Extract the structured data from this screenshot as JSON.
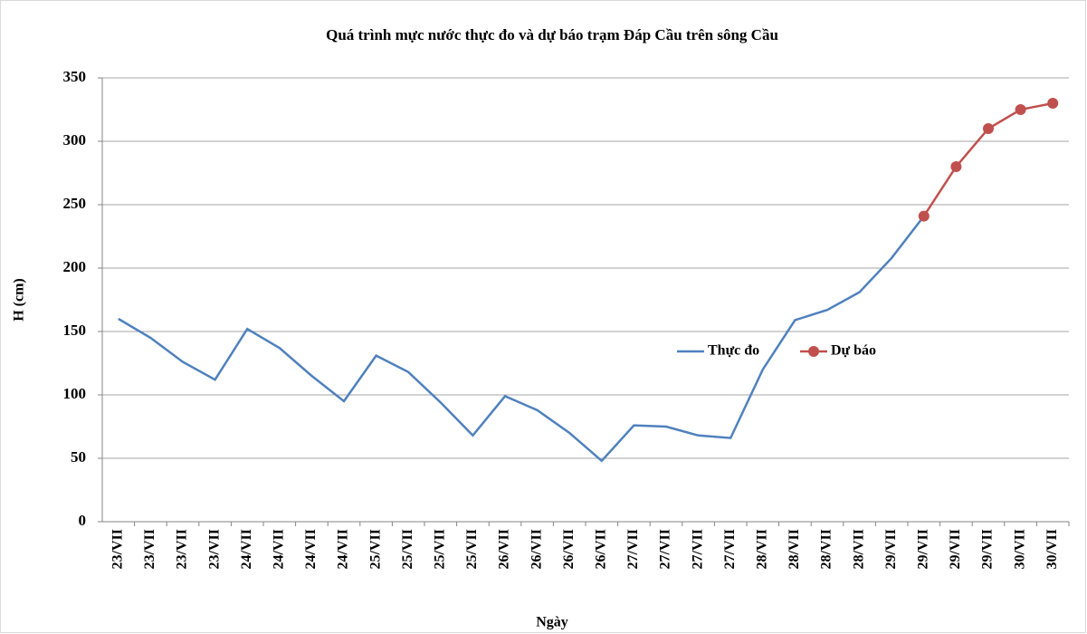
{
  "chart_data": {
    "type": "line",
    "title": "Quá trình mực nước thực đo và dự báo trạm Đáp Cầu trên sông Cầu",
    "x_label": "Ngày",
    "y_label": "H (cm)",
    "categories": [
      "23/VII",
      "23/VII",
      "23/VII",
      "23/VII",
      "24/VII",
      "24/VII",
      "24/VII",
      "24/VII",
      "25/VII",
      "25/VII",
      "25/VII",
      "25/VII",
      "26/VII",
      "26/VII",
      "26/VII",
      "26/VII",
      "27/VII",
      "27/VII",
      "27/VII",
      "27/VII",
      "28/VII",
      "28/VII",
      "28/VII",
      "28/VII",
      "29/VII",
      "29/VII",
      "29/VII",
      "29/VII",
      "30/VII",
      "30/VII"
    ],
    "series": [
      {
        "name": "Thực đo",
        "color": "#4f81bd",
        "marker": false,
        "values": [
          160,
          145,
          126,
          112,
          152,
          137,
          115,
          95,
          131,
          118,
          94,
          68,
          99,
          88,
          70,
          48,
          76,
          75,
          68,
          66,
          120,
          159,
          167,
          181,
          208,
          241,
          null,
          null,
          null,
          null
        ]
      },
      {
        "name": "Dự báo",
        "color": "#c0504d",
        "marker": true,
        "values": [
          null,
          null,
          null,
          null,
          null,
          null,
          null,
          null,
          null,
          null,
          null,
          null,
          null,
          null,
          null,
          null,
          null,
          null,
          null,
          null,
          null,
          null,
          null,
          null,
          null,
          241,
          280,
          310,
          325,
          330
        ]
      }
    ],
    "ylim": [
      0,
      350
    ],
    "yticks": [
      0,
      50,
      100,
      150,
      200,
      250,
      300,
      350
    ],
    "grid": true,
    "legend": "right"
  }
}
